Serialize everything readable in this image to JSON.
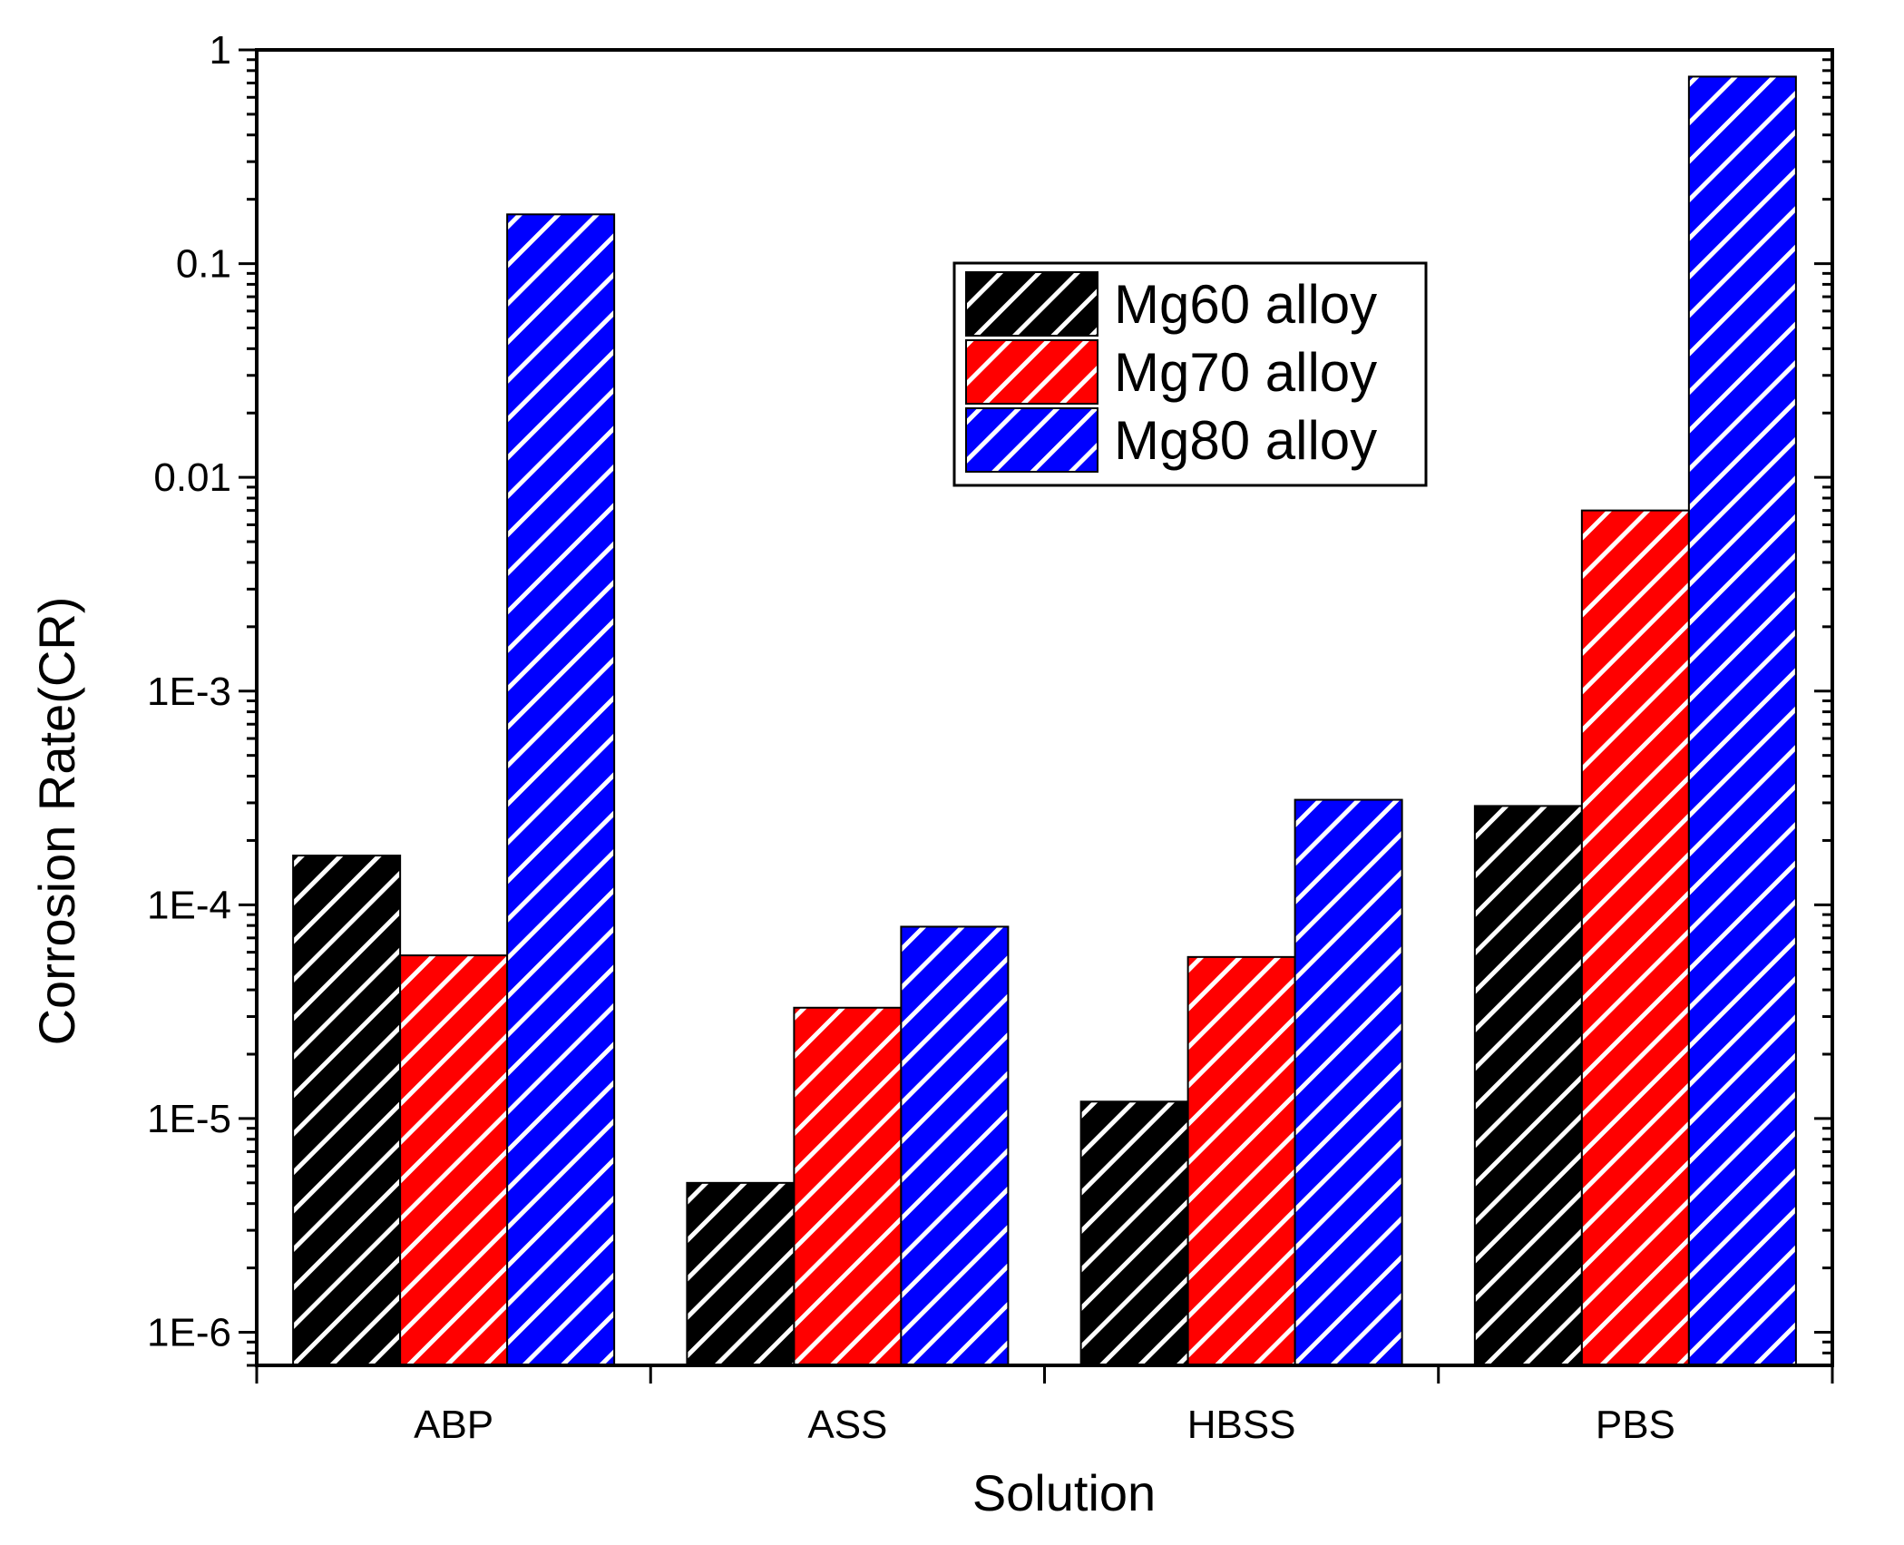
{
  "chart_data": {
    "type": "bar",
    "yscale": "log",
    "xlabel": "Solution",
    "ylabel": "Corrosion Rate(CR)",
    "ylim": [
      7e-07,
      1
    ],
    "yticks": [
      {
        "value": 1e-06,
        "label": "1E-6"
      },
      {
        "value": 1e-05,
        "label": "1E-5"
      },
      {
        "value": 0.0001,
        "label": "1E-4"
      },
      {
        "value": 0.001,
        "label": "1E-3"
      },
      {
        "value": 0.01,
        "label": "0.01"
      },
      {
        "value": 0.1,
        "label": "0.1"
      },
      {
        "value": 1,
        "label": "1"
      }
    ],
    "categories": [
      "ABP",
      "ASS",
      "HBSS",
      "PBS"
    ],
    "series": [
      {
        "name": "Mg60 alloy",
        "color": "#000000",
        "values": [
          0.00017,
          5e-06,
          1.2e-05,
          0.00029
        ]
      },
      {
        "name": "Mg70 alloy",
        "color": "#ff0000",
        "values": [
          5.8e-05,
          3.3e-05,
          5.7e-05,
          0.007
        ]
      },
      {
        "name": "Mg80 alloy",
        "color": "#0000ff",
        "values": [
          0.17,
          7.9e-05,
          0.00031,
          0.75
        ]
      }
    ],
    "legend_position": "top-center",
    "hatch": "diagonal white stripes"
  }
}
